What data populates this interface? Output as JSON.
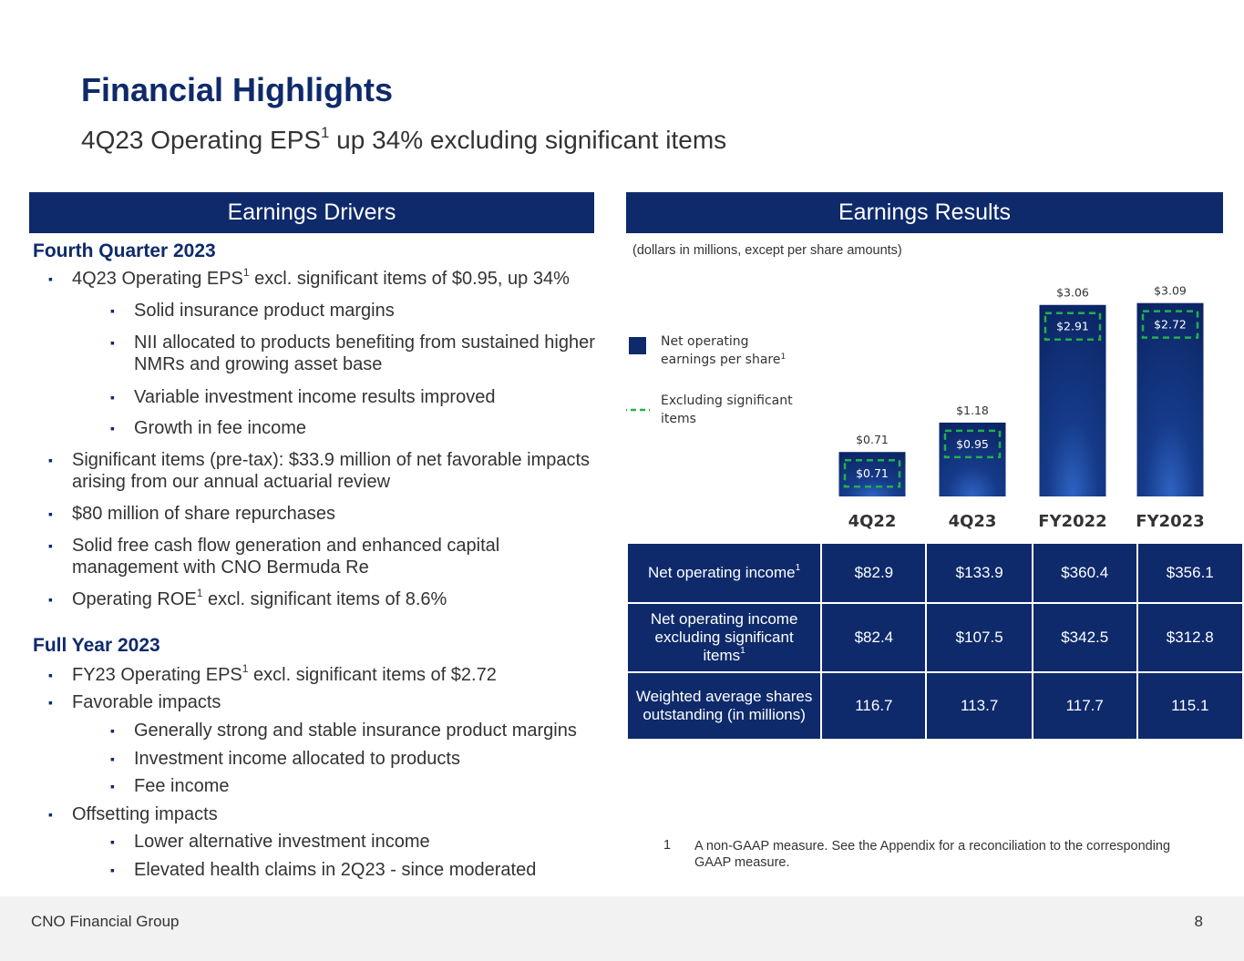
{
  "slide": {
    "title": "Financial Highlights",
    "subtitle_main": "4Q23 Operating EPS",
    "subtitle_sup": "1",
    "subtitle_tail": " up 34% excluding significant items"
  },
  "drivers": {
    "header": "Earnings Drivers",
    "q4_title": "Fourth Quarter 2023",
    "q4_items": [
      {
        "pre": "4Q23 Operating EPS",
        "sup": "1",
        "post": " excl. significant items of $0.95, up 34%"
      },
      {
        "text": "Solid insurance product margins"
      },
      {
        "text": "NII allocated to products benefiting from sustained higher NMRs and growing asset base"
      },
      {
        "text": "Variable investment income results improved"
      },
      {
        "text": "Growth in fee income"
      },
      {
        "text": "Significant items (pre-tax): $33.9 million of net favorable impacts arising from our annual actuarial review"
      },
      {
        "text": "$80 million of share repurchases"
      },
      {
        "text": "Solid free cash flow generation and enhanced capital management with CNO Bermuda Re"
      },
      {
        "pre": "Operating ROE",
        "sup": "1",
        "post": " excl. significant items of 8.6%"
      }
    ],
    "fy_title": "Full Year 2023",
    "fy_items": [
      {
        "pre": "FY23 Operating EPS",
        "sup": "1",
        "post": " excl. significant items of $2.72"
      },
      {
        "text": "Favorable impacts"
      },
      {
        "text": "Generally strong and stable insurance product margins"
      },
      {
        "text": "Investment income allocated to products"
      },
      {
        "text": "Fee income"
      },
      {
        "text": "Offsetting impacts"
      },
      {
        "text": "Lower alternative investment income"
      },
      {
        "text": "Elevated health claims in 2Q23 - since moderated"
      }
    ]
  },
  "results": {
    "header": "Earnings Results",
    "units_note": "(dollars in millions, except per share amounts)",
    "table": [
      {
        "label": "Net operating income",
        "sup": "1",
        "values": [
          "$82.9",
          "$133.9",
          "$360.4",
          "$356.1"
        ]
      },
      {
        "label": "Net operating income excluding significant items",
        "sup": "1",
        "values": [
          "$82.4",
          "$107.5",
          "$342.5",
          "$312.8"
        ]
      },
      {
        "label": "Weighted average shares outstanding (in millions)",
        "sup": "",
        "values": [
          "116.7",
          "113.7",
          "117.7",
          "115.1"
        ]
      }
    ]
  },
  "chart_data": {
    "type": "bar",
    "title": "",
    "categories": [
      "4Q22",
      "4Q23",
      "FY2022",
      "FY2023"
    ],
    "series": [
      {
        "name": "Net operating earnings per share1",
        "values": [
          0.71,
          1.18,
          3.06,
          3.09
        ],
        "labels": [
          "$0.71",
          "$1.18",
          "$3.06",
          "$3.09"
        ]
      },
      {
        "name": "Excluding significant items",
        "values": [
          0.71,
          0.95,
          2.91,
          2.72
        ],
        "labels": [
          "$0.71",
          "$0.95",
          "$2.91",
          "$2.72"
        ]
      }
    ],
    "legend": [
      {
        "line1": "Net operating",
        "line2": "earnings per share",
        "sup": "1"
      },
      {
        "line1": "Excluding significant",
        "line2": "items",
        "sup": ""
      }
    ],
    "ylim": [
      0,
      3.1
    ],
    "grid": false,
    "legend_position": "left",
    "colors": {
      "bar": "#0e2a6b",
      "bar_highlight": "#1d4fa8",
      "dash": "#22b14c",
      "label": "#333333"
    }
  },
  "footnote": {
    "num": "1",
    "text": "A non-GAAP measure. See the Appendix for a reconciliation to the corresponding GAAP measure."
  },
  "footer": {
    "company": "CNO Financial Group",
    "page": "8"
  }
}
